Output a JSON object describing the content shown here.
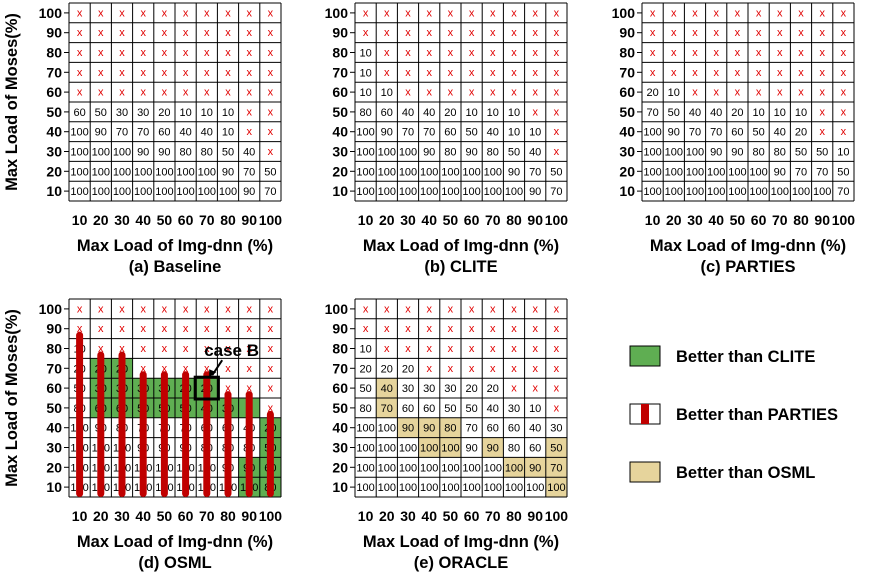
{
  "chart_data": [
    {
      "type": "heatmap",
      "title": "(a) Baseline",
      "xlabel": "Max Load of Img-dnn (%)",
      "ylabel": "Max Load of Moses(%)",
      "x": [
        "10",
        "20",
        "30",
        "40",
        "50",
        "60",
        "70",
        "80",
        "90",
        "100"
      ],
      "y": [
        "100",
        "90",
        "80",
        "70",
        "60",
        "50",
        "40",
        "30",
        "20",
        "10"
      ],
      "values": [
        [
          "x",
          "x",
          "x",
          "x",
          "x",
          "x",
          "x",
          "x",
          "x",
          "x"
        ],
        [
          "x",
          "x",
          "x",
          "x",
          "x",
          "x",
          "x",
          "x",
          "x",
          "x"
        ],
        [
          "x",
          "x",
          "x",
          "x",
          "x",
          "x",
          "x",
          "x",
          "x",
          "x"
        ],
        [
          "x",
          "x",
          "x",
          "x",
          "x",
          "x",
          "x",
          "x",
          "x",
          "x"
        ],
        [
          "x",
          "x",
          "x",
          "x",
          "x",
          "x",
          "x",
          "x",
          "x",
          "x"
        ],
        [
          "60",
          "50",
          "30",
          "30",
          "20",
          "10",
          "10",
          "10",
          "x",
          "x"
        ],
        [
          "100",
          "90",
          "70",
          "70",
          "60",
          "40",
          "40",
          "10",
          "x",
          "x"
        ],
        [
          "100",
          "100",
          "100",
          "90",
          "90",
          "80",
          "80",
          "50",
          "40",
          "x"
        ],
        [
          "100",
          "100",
          "100",
          "100",
          "100",
          "100",
          "100",
          "90",
          "70",
          "50"
        ],
        [
          "100",
          "100",
          "100",
          "100",
          "100",
          "100",
          "100",
          "100",
          "90",
          "70"
        ]
      ]
    },
    {
      "type": "heatmap",
      "title": "(b) CLITE",
      "xlabel": "Max Load of Img-dnn (%)",
      "ylabel": "",
      "x": [
        "10",
        "20",
        "30",
        "40",
        "50",
        "60",
        "70",
        "80",
        "90",
        "100"
      ],
      "y": [
        "100",
        "90",
        "80",
        "70",
        "60",
        "50",
        "40",
        "30",
        "20",
        "10"
      ],
      "values": [
        [
          "x",
          "x",
          "x",
          "x",
          "x",
          "x",
          "x",
          "x",
          "x",
          "x"
        ],
        [
          "x",
          "x",
          "x",
          "x",
          "x",
          "x",
          "x",
          "x",
          "x",
          "x"
        ],
        [
          "10",
          "x",
          "x",
          "x",
          "x",
          "x",
          "x",
          "x",
          "x",
          "x"
        ],
        [
          "10",
          "x",
          "x",
          "x",
          "x",
          "x",
          "x",
          "x",
          "x",
          "x"
        ],
        [
          "10",
          "10",
          "x",
          "x",
          "x",
          "x",
          "x",
          "x",
          "x",
          "x"
        ],
        [
          "80",
          "60",
          "40",
          "40",
          "20",
          "10",
          "10",
          "10",
          "x",
          "x"
        ],
        [
          "100",
          "90",
          "70",
          "70",
          "60",
          "50",
          "40",
          "10",
          "10",
          "x"
        ],
        [
          "100",
          "100",
          "100",
          "90",
          "80",
          "90",
          "80",
          "50",
          "40",
          "x"
        ],
        [
          "100",
          "100",
          "100",
          "100",
          "100",
          "100",
          "100",
          "90",
          "70",
          "50"
        ],
        [
          "100",
          "100",
          "100",
          "100",
          "100",
          "100",
          "100",
          "100",
          "90",
          "70"
        ]
      ]
    },
    {
      "type": "heatmap",
      "title": "(c) PARTIES",
      "xlabel": "Max Load of Img-dnn (%)",
      "ylabel": "",
      "x": [
        "10",
        "20",
        "30",
        "40",
        "50",
        "60",
        "70",
        "80",
        "90",
        "100"
      ],
      "y": [
        "100",
        "90",
        "80",
        "70",
        "60",
        "50",
        "40",
        "30",
        "20",
        "10"
      ],
      "values": [
        [
          "x",
          "x",
          "x",
          "x",
          "x",
          "x",
          "x",
          "x",
          "x",
          "x"
        ],
        [
          "x",
          "x",
          "x",
          "x",
          "x",
          "x",
          "x",
          "x",
          "x",
          "x"
        ],
        [
          "x",
          "x",
          "x",
          "x",
          "x",
          "x",
          "x",
          "x",
          "x",
          "x"
        ],
        [
          "x",
          "x",
          "x",
          "x",
          "x",
          "x",
          "x",
          "x",
          "x",
          "x"
        ],
        [
          "20",
          "10",
          "x",
          "x",
          "x",
          "x",
          "x",
          "x",
          "x",
          "x"
        ],
        [
          "70",
          "50",
          "40",
          "40",
          "20",
          "10",
          "10",
          "10",
          "x",
          "x"
        ],
        [
          "100",
          "90",
          "70",
          "70",
          "60",
          "50",
          "40",
          "20",
          "x",
          "x"
        ],
        [
          "100",
          "100",
          "100",
          "90",
          "90",
          "80",
          "80",
          "50",
          "50",
          "10"
        ],
        [
          "100",
          "100",
          "100",
          "100",
          "100",
          "100",
          "90",
          "70",
          "70",
          "50"
        ],
        [
          "100",
          "100",
          "100",
          "100",
          "100",
          "100",
          "100",
          "100",
          "100",
          "70"
        ]
      ]
    },
    {
      "type": "heatmap",
      "title": "(d) OSML",
      "xlabel": "Max Load of Img-dnn (%)",
      "ylabel": "Max Load of Moses(%)",
      "x": [
        "10",
        "20",
        "30",
        "40",
        "50",
        "60",
        "70",
        "80",
        "90",
        "100"
      ],
      "y": [
        "100",
        "90",
        "80",
        "70",
        "60",
        "50",
        "40",
        "30",
        "20",
        "10"
      ],
      "values": [
        [
          "x",
          "x",
          "x",
          "x",
          "x",
          "x",
          "x",
          "x",
          "x",
          "x"
        ],
        [
          "x",
          "x",
          "x",
          "x",
          "x",
          "x",
          "x",
          "x",
          "x",
          "x"
        ],
        [
          "10",
          "x",
          "x",
          "x",
          "x",
          "x",
          "x",
          "x",
          "x",
          "x"
        ],
        [
          "20",
          "20",
          "20",
          "x",
          "x",
          "x",
          "x",
          "x",
          "x",
          "x"
        ],
        [
          "50",
          "30",
          "30",
          "30",
          "30",
          "20",
          "20",
          "x",
          "x",
          "x"
        ],
        [
          "80",
          "60",
          "60",
          "50",
          "50",
          "50",
          "40",
          "30",
          "x",
          "x"
        ],
        [
          "100",
          "90",
          "80",
          "70",
          "70",
          "70",
          "60",
          "60",
          "40",
          "20"
        ],
        [
          "100",
          "100",
          "100",
          "90",
          "90",
          "90",
          "80",
          "80",
          "80",
          "50"
        ],
        [
          "100",
          "100",
          "100",
          "100",
          "100",
          "100",
          "100",
          "90",
          "90",
          "60"
        ],
        [
          "100",
          "100",
          "100",
          "100",
          "100",
          "100",
          "100",
          "100",
          "100",
          "80"
        ]
      ],
      "better_than_clite": [
        [
          3,
          1
        ],
        [
          3,
          2
        ],
        [
          4,
          1
        ],
        [
          4,
          2
        ],
        [
          4,
          3
        ],
        [
          4,
          4
        ],
        [
          4,
          5
        ],
        [
          4,
          6
        ],
        [
          5,
          1
        ],
        [
          5,
          2
        ],
        [
          5,
          3
        ],
        [
          5,
          4
        ],
        [
          5,
          5
        ],
        [
          5,
          6
        ],
        [
          5,
          7
        ],
        [
          5,
          8
        ],
        [
          6,
          9
        ],
        [
          7,
          9
        ],
        [
          8,
          8
        ],
        [
          8,
          9
        ],
        [
          9,
          8
        ],
        [
          9,
          9
        ]
      ],
      "better_than_parties": [
        0,
        1,
        2,
        3,
        4,
        5,
        6,
        7,
        8,
        9
      ],
      "parties_bar_top_row": [
        2,
        3,
        3,
        4,
        4,
        4,
        4,
        5,
        5,
        6
      ],
      "annotation": "case B",
      "annotation_cell": [
        4,
        6
      ]
    },
    {
      "type": "heatmap",
      "title": "(e) ORACLE",
      "xlabel": "Max Load of Img-dnn (%)",
      "ylabel": "",
      "x": [
        "10",
        "20",
        "30",
        "40",
        "50",
        "60",
        "70",
        "80",
        "90",
        "100"
      ],
      "y": [
        "100",
        "90",
        "80",
        "70",
        "60",
        "50",
        "40",
        "30",
        "20",
        "10"
      ],
      "values": [
        [
          "x",
          "x",
          "x",
          "x",
          "x",
          "x",
          "x",
          "x",
          "x",
          "x"
        ],
        [
          "x",
          "x",
          "x",
          "x",
          "x",
          "x",
          "x",
          "x",
          "x",
          "x"
        ],
        [
          "10",
          "x",
          "x",
          "x",
          "x",
          "x",
          "x",
          "x",
          "x",
          "x"
        ],
        [
          "20",
          "20",
          "20",
          "x",
          "x",
          "x",
          "x",
          "x",
          "x",
          "x"
        ],
        [
          "50",
          "40",
          "30",
          "30",
          "30",
          "20",
          "20",
          "x",
          "x",
          "x"
        ],
        [
          "80",
          "70",
          "60",
          "60",
          "50",
          "50",
          "40",
          "30",
          "10",
          "x"
        ],
        [
          "100",
          "100",
          "90",
          "90",
          "80",
          "70",
          "60",
          "60",
          "40",
          "30"
        ],
        [
          "100",
          "100",
          "100",
          "100",
          "100",
          "90",
          "90",
          "80",
          "60",
          "50"
        ],
        [
          "100",
          "100",
          "100",
          "100",
          "100",
          "100",
          "100",
          "100",
          "90",
          "70"
        ],
        [
          "100",
          "100",
          "100",
          "100",
          "100",
          "100",
          "100",
          "100",
          "100",
          "100"
        ]
      ],
      "better_than_osml": [
        [
          4,
          1
        ],
        [
          5,
          1
        ],
        [
          6,
          2
        ],
        [
          6,
          3
        ],
        [
          6,
          4
        ],
        [
          7,
          3
        ],
        [
          7,
          4
        ],
        [
          7,
          6
        ],
        [
          7,
          9
        ],
        [
          8,
          7
        ],
        [
          8,
          8
        ],
        [
          8,
          9
        ],
        [
          9,
          9
        ]
      ]
    }
  ],
  "legend": [
    {
      "label": "Better than CLITE",
      "style": "green"
    },
    {
      "label": "Better than PARTIES",
      "style": "red-bar"
    },
    {
      "label": "Better than OSML",
      "style": "tan"
    }
  ],
  "colors": {
    "green": "#5fae52",
    "red_bar": "#c00000",
    "tan": "#e6d49c",
    "x_mark": "#e00000",
    "grid": "#000000"
  }
}
